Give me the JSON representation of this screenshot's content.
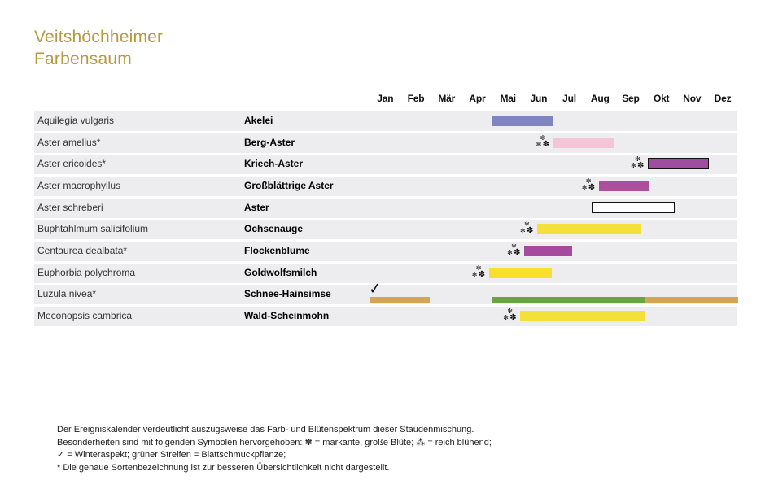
{
  "title": {
    "line1": "Veitshöchheimer",
    "line2": "Farbensaum"
  },
  "glyphs": {
    "small_asterisk": "✻",
    "flower": "✽",
    "check": "✓"
  },
  "colors": {
    "title_gold": "#b5993b",
    "row_band": "#ededef",
    "bar_border": "#111111"
  },
  "footer_lines": [
    "Der Ereigniskalender verdeutlicht auszugsweise das Farb- und Blütenspektrum dieser Staudenmischung.",
    "Besonderheiten sind mit folgenden Symbolen hervorgehoben: ✽ = markante, große Blüte; ⁂ = reich blühend;",
    "✓ = Winteraspekt; grüner Streifen = Blattschmuckpflanze;",
    "* Die genaue Sortenbezeichnung ist zur besseren Übersichtlichkeit nicht dargestellt."
  ],
  "chart_data": {
    "type": "gantt",
    "title": "Veitshöchheimer Farbensaum",
    "x_unit": "months, 0 = start of Jan, 12 = end of Dez",
    "months": [
      "Jan",
      "Feb",
      "Mär",
      "Apr",
      "Mai",
      "Jun",
      "Jul",
      "Aug",
      "Sep",
      "Okt",
      "Nov",
      "Dez"
    ],
    "rows": [
      {
        "latin": "Aquilegia vulgaris",
        "german": "Akelei",
        "bloom_symbol": false,
        "winter_check": false,
        "bars": [
          {
            "start": 3.96,
            "end": 5.98,
            "color": "#8085c0",
            "border": false,
            "stripe": false
          }
        ]
      },
      {
        "latin": "Aster amellus*",
        "german": "Berg-Aster",
        "bloom_symbol": true,
        "winter_check": false,
        "bars": [
          {
            "start": 5.97,
            "end": 7.98,
            "color": "#f3c5d6",
            "border": false,
            "stripe": false
          }
        ]
      },
      {
        "latin": "Aster ericoides*",
        "german": "Kriech-Aster",
        "bloom_symbol": true,
        "winter_check": false,
        "bars": [
          {
            "start": 9.06,
            "end": 11.05,
            "color": "#a04d9f",
            "border": true,
            "stripe": false
          }
        ]
      },
      {
        "latin": "Aster macrophyllus",
        "german": "Großblättrige Aster",
        "bloom_symbol": true,
        "winter_check": false,
        "bars": [
          {
            "start": 7.46,
            "end": 9.08,
            "color": "#ad4f9d",
            "border": false,
            "stripe": false
          }
        ]
      },
      {
        "latin": "Aster schreberi",
        "german": "Aster",
        "bloom_symbol": false,
        "winter_check": false,
        "bars": [
          {
            "start": 7.23,
            "end": 9.93,
            "color": "#ffffff",
            "border": true,
            "stripe": false
          }
        ]
      },
      {
        "latin": "Buphtahlmum salicifolium",
        "german": "Ochsenauge",
        "bloom_symbol": true,
        "winter_check": false,
        "bars": [
          {
            "start": 5.45,
            "end": 8.82,
            "color": "#f3e13a",
            "border": false,
            "stripe": false
          }
        ]
      },
      {
        "latin": "Centaurea dealbata*",
        "german": "Flockenblume",
        "bloom_symbol": true,
        "winter_check": false,
        "bars": [
          {
            "start": 5.03,
            "end": 6.59,
            "color": "#a64a9d",
            "border": false,
            "stripe": false
          }
        ]
      },
      {
        "latin": "Euphorbia polychroma",
        "german": "Goldwolfsmilch",
        "bloom_symbol": true,
        "winter_check": false,
        "bars": [
          {
            "start": 3.88,
            "end": 5.93,
            "color": "#f8e12c",
            "border": false,
            "stripe": false
          }
        ]
      },
      {
        "latin": "Luzula nivea*",
        "german": "Schnee-Hainsimse",
        "bloom_symbol": false,
        "winter_check": true,
        "bars": [
          {
            "start": 0.0,
            "end": 1.95,
            "color": "#d2a653",
            "border": false,
            "stripe": true
          },
          {
            "start": 3.97,
            "end": 8.98,
            "color": "#6aa33f",
            "border": false,
            "stripe": true
          },
          {
            "start": 8.98,
            "end": 12.0,
            "color": "#d2a653",
            "border": false,
            "stripe": true
          }
        ]
      },
      {
        "latin": "Meconopsis cambrica",
        "german": "Wald-Scheinmohn",
        "bloom_symbol": true,
        "winter_check": false,
        "bars": [
          {
            "start": 4.9,
            "end": 8.97,
            "color": "#f3e13a",
            "border": false,
            "stripe": false
          }
        ]
      }
    ]
  }
}
